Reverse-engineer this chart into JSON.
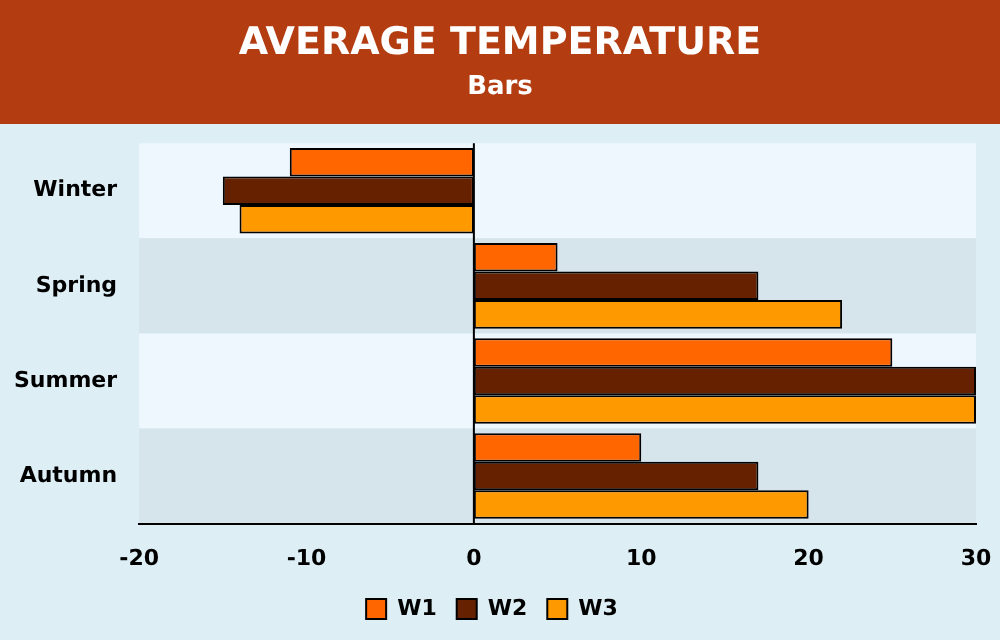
{
  "chart_data": {
    "type": "bar",
    "orientation": "horizontal",
    "title": "AVERAGE TEMPERATURE",
    "subtitle": "Bars",
    "categories": [
      "Winter",
      "Spring",
      "Summer",
      "Autumn"
    ],
    "series": [
      {
        "name": "W1",
        "color": "#ff6600",
        "values": [
          -11,
          5,
          25,
          10
        ]
      },
      {
        "name": "W2",
        "color": "#662200",
        "values": [
          -15,
          17,
          30,
          17
        ]
      },
      {
        "name": "W3",
        "color": "#ff9900",
        "values": [
          -14,
          22,
          30,
          20
        ]
      }
    ],
    "xlim": [
      -20,
      30
    ],
    "xticks": [
      -20,
      -10,
      0,
      10,
      20,
      30
    ],
    "grid": false,
    "legend": "bottom",
    "ref_lines": [
      {
        "axis": "x",
        "value": 0,
        "color": "#000000"
      }
    ]
  }
}
